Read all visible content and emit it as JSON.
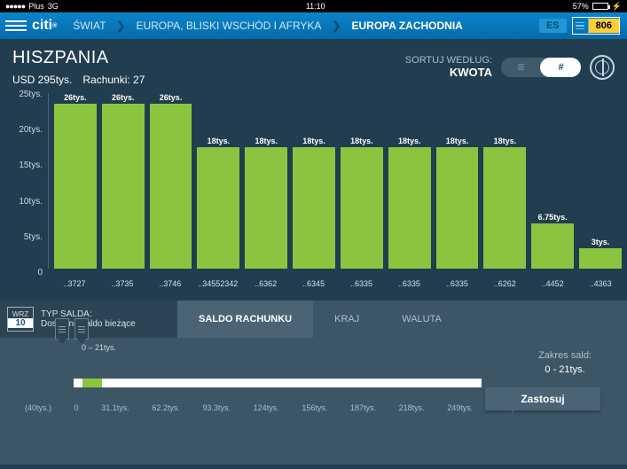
{
  "status": {
    "carrier": "Plus",
    "network": "3G",
    "time": "11:10",
    "battery_pct": "57%",
    "battery_fill": 57
  },
  "nav": {
    "world": "ŚWIAT",
    "region": "EUROPA, BLISKI WSCHÓD I AFRYKA",
    "subregion": "EUROPA ZACHODNIA",
    "lang": "ES",
    "count": "806"
  },
  "header": {
    "country": "HISZPANIA",
    "total": "USD 295tys.",
    "accounts": "Rachunki: 27",
    "sort_label": "SORTUJ WEDŁUG:",
    "sort_value": "KWOTA",
    "toggle_hash": "#"
  },
  "chart": {
    "bar_color": "#8bc53f",
    "max": 26,
    "y_ticks": [
      "25tys.",
      "20tys.",
      "15tys.",
      "10tys.",
      "5tys.",
      "0"
    ],
    "bars": [
      {
        "label": "..3727",
        "value_label": "26tys.",
        "value": 26
      },
      {
        "label": "..3735",
        "value_label": "26tys.",
        "value": 26
      },
      {
        "label": "..3746",
        "value_label": "26tys.",
        "value": 26
      },
      {
        "label": "..34552342",
        "value_label": "18tys.",
        "value": 18
      },
      {
        "label": "..6362",
        "value_label": "18tys.",
        "value": 18
      },
      {
        "label": "..6345",
        "value_label": "18tys.",
        "value": 18
      },
      {
        "label": "..6335",
        "value_label": "18tys.",
        "value": 18
      },
      {
        "label": "..6335",
        "value_label": "18tys.",
        "value": 18
      },
      {
        "label": "..6335",
        "value_label": "18tys.",
        "value": 18
      },
      {
        "label": "..6262",
        "value_label": "18tys.",
        "value": 18
      },
      {
        "label": "..4452",
        "value_label": "6.75tys.",
        "value": 6.75
      },
      {
        "label": "..4363",
        "value_label": "3tys.",
        "value": 3
      }
    ]
  },
  "tabs": {
    "date_month": "WRZ",
    "date_day": "10",
    "type_label": "TYP SALDA:",
    "type_value": "Dostępne saldo bieżące",
    "t1": "SALDO RACHUNKU",
    "t2": "KRAJ",
    "t3": "WALUTA"
  },
  "slider": {
    "range_label": "0  – 21tys.",
    "ticks": [
      "(40tys.)",
      "0",
      "31.1tys.",
      "62.2tys.",
      "93.3tys.",
      "124tys.",
      "156tys.",
      "187tys.",
      "218tys.",
      "249tys.",
      "280tys."
    ],
    "range_title": "Zakres sald:",
    "range_value": "0 - 21tys.",
    "apply": "Zastosuj"
  }
}
